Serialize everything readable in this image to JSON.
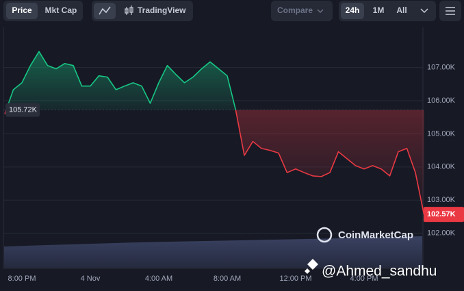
{
  "ui": {
    "tabs": [
      "Price",
      "Mkt Cap"
    ],
    "tradingview": "TradingView",
    "compare": "Compare",
    "ranges": [
      "24h",
      "1M",
      "All"
    ],
    "watermark": "CoinMarketCap",
    "overlay": "@Ahmed_sandhu"
  },
  "chart_data": {
    "type": "line",
    "categories": [
      null,
      null,
      "8:00 PM",
      null,
      null,
      null,
      null,
      null,
      null,
      null,
      "4 Nov",
      null,
      null,
      null,
      null,
      null,
      null,
      null,
      "4:00 AM",
      null,
      null,
      null,
      null,
      null,
      null,
      null,
      "8:00 AM",
      null,
      null,
      null,
      null,
      null,
      null,
      null,
      "12:00 PM",
      null,
      null,
      null,
      null,
      null,
      null,
      null,
      "4:00 PM",
      null,
      null,
      null,
      null,
      null,
      null,
      null
    ],
    "values": [
      105.6,
      106.33,
      106.54,
      107.06,
      107.48,
      107.06,
      106.96,
      107.12,
      107.06,
      106.44,
      106.44,
      106.75,
      106.71,
      106.33,
      106.44,
      106.54,
      106.44,
      105.92,
      106.54,
      107.06,
      106.79,
      106.54,
      106.71,
      106.96,
      107.17,
      106.96,
      106.75,
      105.71,
      104.35,
      104.77,
      104.56,
      104.5,
      104.42,
      103.83,
      103.94,
      103.83,
      103.73,
      103.71,
      103.83,
      104.46,
      104.25,
      104.04,
      103.94,
      104.04,
      103.94,
      103.73,
      104.46,
      104.56,
      103.83,
      102.57
    ],
    "up_color": "#16c784",
    "down_color": "#ea3943",
    "baseline": {
      "value": 105.72,
      "label": "105.72K"
    },
    "last_price": {
      "value": 102.57,
      "label": "102.57K"
    },
    "ylim": [
      100.94,
      108.21
    ],
    "yticks": [
      {
        "value": 102,
        "label": "102.00K"
      },
      {
        "value": 103,
        "label": "103.00K"
      },
      {
        "value": 104,
        "label": "104.00K"
      },
      {
        "value": 105,
        "label": "105.00K"
      },
      {
        "value": 106,
        "label": "106.00K"
      },
      {
        "value": 107,
        "label": "107.00K"
      }
    ],
    "grid": true
  }
}
